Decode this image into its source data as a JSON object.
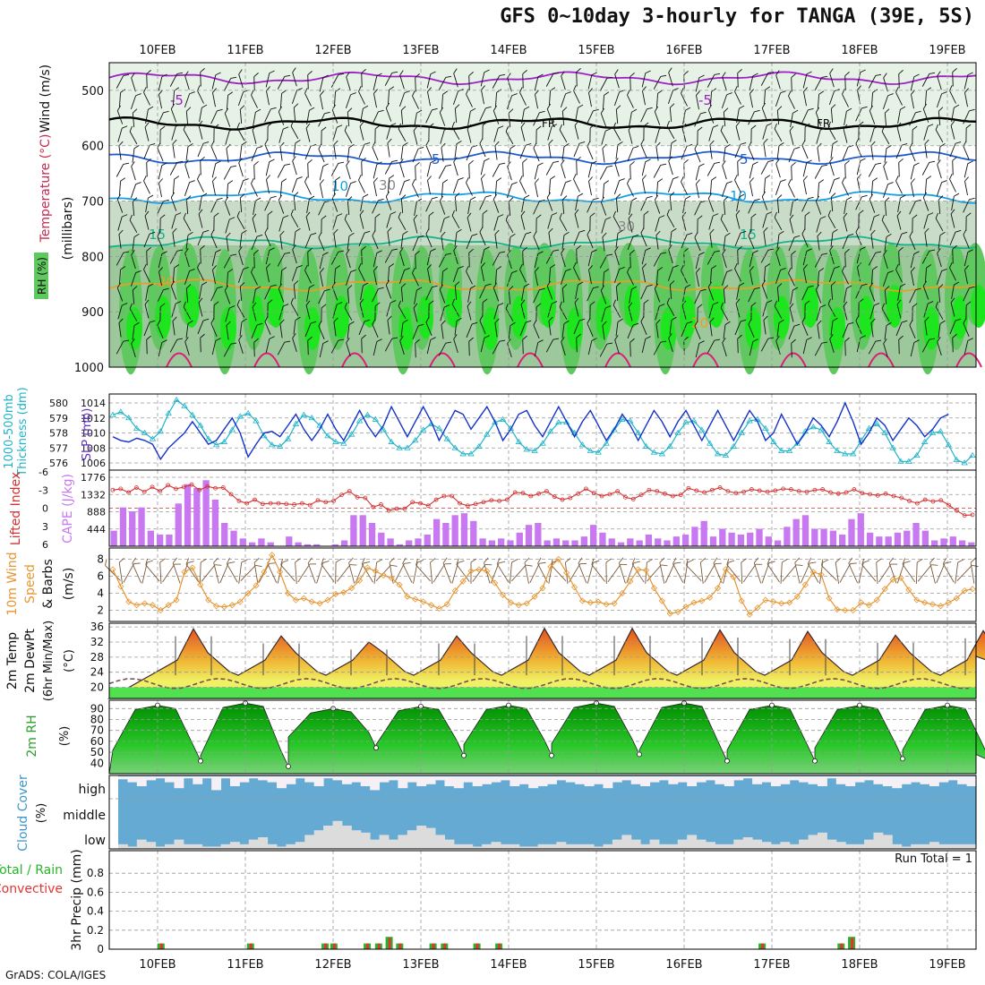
{
  "title": "GFS 0~10day 3-hourly for TANGA (39E, 5S)",
  "credit": "GrADS: COLA/IGES",
  "colors": {
    "rh_light": "#e6f2e6",
    "rh_mid": "#c8dcc8",
    "rh_dark": "#9cc89c",
    "rh_green": "#5fc85f",
    "rh_bright": "#1ee61e",
    "thickness": "#20b4c8",
    "slp": "#1432c8",
    "lifted": "#d23232",
    "cape": "#c878f0",
    "wind_speed": "#e69632",
    "barb": "#7a5a3a",
    "temp_fill_low": "#f0f064",
    "temp_fill_mid": "#f0b432",
    "temp_fill_high": "#e6501e",
    "dewpoint": "#785050",
    "rh2m_dark": "#008c00",
    "rh2m_light": "#78d278",
    "cloud": "#64aad2",
    "cloud_clear": "#f5f0f5",
    "cloud_low_gray": "#dcdcdc",
    "precip_total": "#28b428",
    "precip_conv": "#e63232"
  },
  "chart_data": [
    {
      "panel": "upper-air",
      "type": "heatmap",
      "ylabel_parts": [
        "Wind (m/s)",
        "Temperature (°C)",
        "RH (%)",
        "(millibars)"
      ],
      "y_ticks": [
        500,
        600,
        700,
        800,
        900,
        1000
      ],
      "ylim": [
        1000,
        450
      ],
      "dates": [
        "10FEB",
        "11FEB",
        "12FEB",
        "13FEB",
        "14FEB",
        "15FEB",
        "16FEB",
        "17FEB",
        "18FEB",
        "19FEB"
      ],
      "isotherm_labels": [
        "-5",
        "-5",
        "FR",
        "FR",
        "5",
        "5",
        "10",
        "10",
        "15",
        "15",
        "20",
        "20",
        "30",
        "30"
      ],
      "isotherms": [
        {
          "label": "-5",
          "level": 478
        },
        {
          "label": "FR",
          "level": 560
        },
        {
          "label": "5",
          "level": 622
        },
        {
          "label": "10",
          "level": 693
        },
        {
          "label": "15",
          "level": 775
        },
        {
          "label": "20",
          "level": 852
        }
      ]
    },
    {
      "panel": "thickness-slp",
      "type": "line",
      "ylabel_left": "1000-500mb Thickness (dm)",
      "ylabel_right": "SLP (mb)",
      "thickness_ticks": [
        576,
        577,
        578,
        579,
        580
      ],
      "slp_ticks": [
        1006,
        1008,
        1010,
        1012,
        1014
      ],
      "thickness": [
        579.2,
        579.4,
        579.0,
        578.3,
        578.0,
        577.6,
        578.1,
        579.3,
        580.2,
        579.8,
        579.2,
        578.5,
        577.6,
        577.2,
        577.4,
        578.2,
        579.1,
        579.3,
        578.8,
        577.8,
        577.2,
        577.1,
        577.6,
        578.6,
        579.2,
        579.0,
        578.5,
        577.8,
        577.4,
        577.3,
        577.9,
        578.8,
        579.2,
        578.9,
        578.2,
        577.4,
        577.0,
        577.0,
        577.5,
        578.2,
        578.6,
        578.3,
        577.6,
        577.0,
        576.6,
        576.6,
        577.1,
        577.9,
        578.7,
        578.9,
        578.3,
        577.4,
        576.9,
        576.8,
        577.3,
        578.1,
        578.7,
        578.7,
        578.0,
        577.2,
        576.8,
        576.7,
        577.3,
        578.2,
        578.9,
        578.8,
        578.0,
        577.1,
        576.7,
        576.6,
        577.1,
        578.0,
        578.7,
        578.8,
        578.2,
        577.3,
        576.6,
        576.5,
        577.1,
        578.0,
        578.8,
        578.9,
        578.3,
        577.4,
        576.8,
        576.8,
        577.3,
        578.1,
        578.4,
        578.2,
        577.4,
        576.8,
        576.6,
        576.6,
        577.5,
        578.3,
        578.6,
        578.0,
        577.0,
        576.1,
        576.1,
        576.5,
        577.4,
        578.0,
        578.1,
        577.2,
        576.2,
        576.0,
        576.5
      ],
      "slp": [
        1009.5,
        1009.0,
        1008.8,
        1009.3,
        1009.0,
        1008.5,
        1006.5,
        1008.0,
        1009.0,
        1010.0,
        1011.5,
        1010.0,
        1008.5,
        1009.0,
        1010.5,
        1012.0,
        1010.0,
        1006.8,
        1008.5,
        1010.0,
        1010.2,
        1009.5,
        1011.0,
        1012.5,
        1010.5,
        1009.0,
        1010.5,
        1012.5,
        1010.5,
        1009.0,
        1011.0,
        1013.0,
        1011.0,
        1009.5,
        1011.0,
        1013.5,
        1011.5,
        1009.5,
        1011.5,
        1013.5,
        1011.5,
        1009.0,
        1011.0,
        1013.0,
        1012.5,
        1010.5,
        1012.0,
        1013.5,
        1011.5,
        1009.0,
        1010.5,
        1012.5,
        1013.0,
        1011.0,
        1009.5,
        1011.5,
        1013.5,
        1011.5,
        1009.5,
        1011.5,
        1013.0,
        1011.0,
        1009.0,
        1010.5,
        1012.5,
        1011.0,
        1009.0,
        1011.0,
        1013.0,
        1011.5,
        1009.5,
        1011.5,
        1013.0,
        1011.0,
        1009.0,
        1011.0,
        1013.0,
        1011.0,
        1009.0,
        1011.0,
        1013.0,
        1011.5,
        1009.0,
        1010.0,
        1012.5,
        1010.5,
        1008.5,
        1010.0,
        1012.0,
        1011.0,
        1009.5,
        1011.5,
        1014.0,
        1011.5,
        1008.5,
        1010.0,
        1012.0,
        1011.0,
        1009.0,
        1010.5,
        1012.0,
        1011.0,
        1009.5,
        1010.5,
        1012.0,
        1012.5
      ]
    },
    {
      "panel": "stability",
      "type": "bar",
      "ylabel_left": "Lifted Index",
      "ylabel_right": "CAPE (J/kg)",
      "lifted_ticks": [
        -6,
        -3,
        0,
        3,
        6
      ],
      "cape_ticks": [
        444,
        888,
        1332,
        1776
      ],
      "lifted_index": [
        -3.0,
        -3.2,
        -2.6,
        -3.4,
        -2.7,
        -3.5,
        -2.8,
        -3.8,
        -3.2,
        -3.5,
        -3.9,
        -3.0,
        -3.6,
        -3.3,
        -3.4,
        -2.3,
        -1.2,
        -0.8,
        -1.4,
        -0.7,
        -0.8,
        -0.8,
        -0.7,
        -0.6,
        -0.8,
        -0.5,
        -1.3,
        -1.0,
        -1.2,
        -2.2,
        -2.8,
        -1.8,
        -1.7,
        -0.2,
        -0.6,
        0.4,
        0.1,
        0.1,
        -1.0,
        -0.8,
        -0.4,
        -1.4,
        -2.0,
        -2.0,
        -0.8,
        -0.4,
        -0.7,
        -1.0,
        -1.3,
        -1.2,
        -1.4,
        -2.6,
        -2.5,
        -2.0,
        -2.4,
        -2.8,
        -1.9,
        -1.4,
        -1.7,
        -2.4,
        -3.2,
        -2.5,
        -2.0,
        -2.3,
        -2.8,
        -1.8,
        -1.5,
        -2.2,
        -3.0,
        -2.8,
        -2.4,
        -2.0,
        -2.2,
        -3.3,
        -2.9,
        -2.6,
        -3.0,
        -3.4,
        -2.8,
        -2.5,
        -2.7,
        -3.1,
        -2.9,
        -2.7,
        -2.9,
        -3.2,
        -3.1,
        -2.8,
        -2.7,
        -3.0,
        -3.1,
        -2.6,
        -2.4,
        -2.6,
        -3.1,
        -2.5,
        -2.3,
        -2.1,
        -2.4,
        -2.0,
        -1.7,
        -1.2,
        -0.8,
        -1.4,
        -1.1,
        -1.3,
        -0.5,
        0.4,
        1.2,
        1.1
      ],
      "cape": [
        400,
        1000,
        900,
        1000,
        400,
        300,
        300,
        1100,
        1600,
        1500,
        1700,
        1200,
        600,
        400,
        200,
        100,
        200,
        100,
        0,
        250,
        100,
        50,
        50,
        0,
        50,
        150,
        800,
        800,
        600,
        350,
        200,
        50,
        150,
        200,
        300,
        700,
        600,
        800,
        850,
        650,
        200,
        150,
        200,
        150,
        350,
        550,
        600,
        150,
        200,
        150,
        150,
        250,
        550,
        350,
        200,
        100,
        200,
        150,
        300,
        200,
        150,
        250,
        300,
        500,
        650,
        250,
        450,
        350,
        300,
        350,
        450,
        250,
        150,
        500,
        700,
        800,
        450,
        450,
        400,
        300,
        700,
        850,
        350,
        250,
        250,
        350,
        400,
        600,
        400,
        150,
        200,
        250,
        150,
        100
      ],
      "cape_max": 1776
    },
    {
      "panel": "10m-wind",
      "type": "line",
      "ylabel": "10m Wind Speed & Barbs (m/s)",
      "y_ticks": [
        2,
        4,
        6,
        8
      ],
      "speed": [
        6.8,
        4.8,
        3.0,
        2.6,
        2.8,
        2.6,
        2.0,
        2.6,
        3.2,
        6.5,
        7.0,
        5.0,
        3.2,
        2.5,
        2.4,
        2.6,
        3.0,
        4.0,
        4.9,
        6.5,
        8.5,
        6.5,
        4.0,
        3.2,
        3.4,
        3.0,
        2.8,
        3.2,
        3.9,
        4.1,
        4.6,
        5.5,
        7.0,
        6.6,
        6.1,
        5.8,
        5.0,
        3.6,
        3.3,
        3.0,
        2.6,
        2.2,
        2.7,
        4.3,
        5.4,
        6.6,
        6.8,
        6.6,
        5.2,
        3.8,
        2.9,
        2.6,
        2.8,
        3.6,
        4.6,
        7.1,
        8.0,
        6.4,
        4.7,
        3.1,
        2.9,
        3.0,
        2.7,
        2.8,
        4.0,
        5.4,
        6.8,
        6.7,
        4.6,
        3.1,
        1.6,
        1.8,
        2.4,
        2.9,
        3.1,
        3.5,
        4.6,
        6.8,
        5.9,
        3.1,
        1.5,
        2.3,
        3.2,
        3.0,
        2.8,
        2.9,
        3.6,
        5.0,
        6.5,
        6.2,
        3.4,
        2.1,
        2.0,
        2.0,
        2.9,
        2.6,
        3.2,
        4.5,
        5.6,
        5.8,
        4.4,
        3.2,
        2.9,
        2.7,
        2.5,
        2.9,
        3.4,
        4.3,
        4.5
      ]
    },
    {
      "panel": "2m-temp",
      "type": "area",
      "ylabel": "2m Temp 2m DewPt (6hr Min/Max) (°C)",
      "y_ticks": [
        20,
        24,
        28,
        32,
        36
      ],
      "temp_peaks": [
        35.5,
        33.6,
        32.0,
        33.6,
        35.6,
        35.6,
        35.2,
        34.8,
        33.8,
        35.0
      ],
      "temp_min": 23.2,
      "dewpoint_mean": 21.0
    },
    {
      "panel": "2m-rh",
      "type": "area",
      "ylabel": "2m RH (%)",
      "y_ticks": [
        40,
        50,
        60,
        70,
        80,
        90
      ],
      "rh_max": [
        93,
        95,
        90,
        92,
        93,
        95,
        95,
        93,
        93,
        93
      ],
      "rh_min": [
        42,
        37,
        54,
        47,
        47,
        48,
        42,
        42,
        44,
        42
      ]
    },
    {
      "panel": "cloud-cover",
      "type": "area",
      "ylabel": "Cloud Cover (%)",
      "levels": [
        "high",
        "middle",
        "low"
      ],
      "high": [
        0.85,
        0.7,
        0.5,
        0.8,
        0.9,
        0.7,
        0.4,
        0.9,
        0.6,
        0.9,
        0.3,
        0.9,
        0.5,
        0.7,
        0.9,
        0.8,
        0.7,
        0.4,
        0.6,
        0.9,
        0.7,
        0.5,
        0.9,
        0.8,
        0.6,
        0.7,
        0.5,
        0.3,
        0.7,
        0.8,
        0.4,
        0.7,
        0.5,
        0.6,
        0.8,
        0.5,
        0.4,
        0.7,
        0.5,
        0.6,
        0.7,
        0.8,
        0.5,
        0.6,
        0.4,
        0.5,
        0.6,
        0.8,
        0.7,
        0.6,
        0.5,
        0.6,
        0.4,
        0.7,
        0.8,
        0.6,
        0.5,
        0.7,
        0.8,
        0.6,
        0.7,
        0.5,
        0.7,
        0.8,
        0.6,
        0.5,
        0.8,
        0.9,
        0.6,
        0.7,
        0.5,
        0.6,
        0.8,
        0.7,
        0.6,
        0.5,
        0.9,
        0.6,
        0.5,
        0.7,
        0.8,
        0.6,
        0.5,
        0.4,
        0.6,
        0.7,
        0.6,
        0.5,
        0.7,
        0.8,
        0.6,
        0.5
      ],
      "low": [
        0.1,
        0.05,
        0.2,
        0.15,
        0.05,
        0.1,
        0.2,
        0.1,
        0.1,
        0.05,
        0.05,
        0.1,
        0.15,
        0.1,
        0.2,
        0.25,
        0.1,
        0.05,
        0.1,
        0.15,
        0.3,
        0.4,
        0.5,
        0.6,
        0.5,
        0.4,
        0.35,
        0.2,
        0.3,
        0.2,
        0.3,
        0.4,
        0.5,
        0.45,
        0.3,
        0.2,
        0.1,
        0.1,
        0.05,
        0.1,
        0.15,
        0.1,
        0.1,
        0.05,
        0.05,
        0.1,
        0.1,
        0.15,
        0.1,
        0.1,
        0.1,
        0.05,
        0.1,
        0.2,
        0.3,
        0.2,
        0.1,
        0.2,
        0.1,
        0.1,
        0.2,
        0.3,
        0.2,
        0.15,
        0.1,
        0.1,
        0.2,
        0.25,
        0.2,
        0.15,
        0.1,
        0.15,
        0.1,
        0.2,
        0.3,
        0.35,
        0.2,
        0.15,
        0.1,
        0.1,
        0.2,
        0.35,
        0.3,
        0.1,
        0.05,
        0.1,
        0.1,
        0.15,
        0.1,
        0.1,
        0.1,
        0.1
      ]
    },
    {
      "panel": "precip",
      "type": "bar",
      "ylabel": "3hr Precip (mm)",
      "legend": [
        "Total / Rain",
        "Convective"
      ],
      "run_total_label": "Run Total = 1",
      "y_ticks": [
        0,
        0.2,
        0.4,
        0.6,
        0.8
      ],
      "ylim": [
        0,
        1.0
      ],
      "bars": [
        {
          "x": 0.1,
          "total": 0.06,
          "conv": 0.06
        },
        {
          "x": 1.12,
          "total": 0.06,
          "conv": 0.06
        },
        {
          "x": 1.97,
          "total": 0.06,
          "conv": 0.06
        },
        {
          "x": 2.07,
          "total": 0.06,
          "conv": 0.06
        },
        {
          "x": 2.45,
          "total": 0.06,
          "conv": 0.06
        },
        {
          "x": 2.58,
          "total": 0.06,
          "conv": 0.06
        },
        {
          "x": 2.7,
          "total": 0.13,
          "conv": 0.12
        },
        {
          "x": 2.82,
          "total": 0.06,
          "conv": 0.06
        },
        {
          "x": 3.2,
          "total": 0.06,
          "conv": 0.06
        },
        {
          "x": 3.33,
          "total": 0.06,
          "conv": 0.06
        },
        {
          "x": 3.7,
          "total": 0.06,
          "conv": 0.06
        },
        {
          "x": 3.95,
          "total": 0.06,
          "conv": 0.06
        },
        {
          "x": 6.95,
          "total": 0.06,
          "conv": 0.06
        },
        {
          "x": 7.85,
          "total": 0.06,
          "conv": 0.06
        },
        {
          "x": 7.97,
          "total": 0.13,
          "conv": 0.12
        }
      ]
    }
  ],
  "axis_dates": [
    "10FEB",
    "11FEB",
    "12FEB",
    "13FEB",
    "14FEB",
    "15FEB",
    "16FEB",
    "17FEB",
    "18FEB",
    "19FEB"
  ]
}
